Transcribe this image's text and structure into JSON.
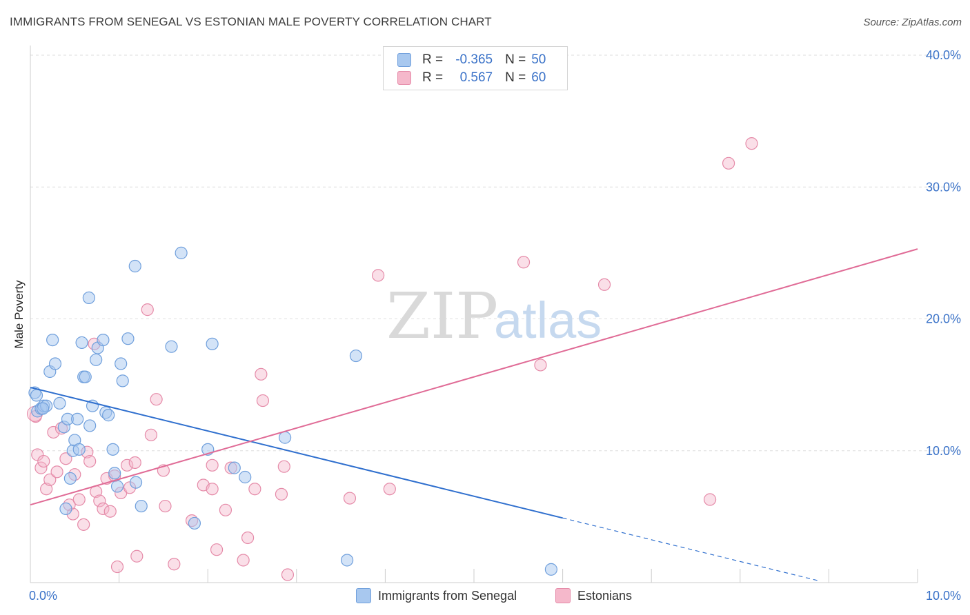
{
  "title": "IMMIGRANTS FROM SENEGAL VS ESTONIAN MALE POVERTY CORRELATION CHART",
  "source": "Source: ZipAtlas.com",
  "watermark": {
    "zip": "ZIP",
    "atlas": "atlas"
  },
  "legend": {
    "rows": [
      {
        "r_label": "R =",
        "r_value": "-0.365",
        "n_label": "N =",
        "n_value": "50"
      },
      {
        "r_label": "R =",
        "r_value": "0.567",
        "n_label": "N =",
        "n_value": "60"
      }
    ]
  },
  "bottom_legend": [
    "Immigrants from Senegal",
    "Estonians"
  ],
  "colors": {
    "blue_fill": "#a8c8ef",
    "blue_stroke": "#6f9fdc",
    "blue_line": "#2f6fce",
    "pink_fill": "#f5b8cb",
    "pink_stroke": "#e58aa8",
    "pink_line": "#e06b96",
    "axis_label": "#3a72c8",
    "grid": "#dddddd"
  },
  "chart_data": {
    "type": "scatter",
    "title": "IMMIGRANTS FROM SENEGAL VS ESTONIAN MALE POVERTY CORRELATION CHART",
    "xlabel": "",
    "ylabel": "Male Poverty",
    "xlim": [
      0,
      10
    ],
    "ylim": [
      0,
      40
    ],
    "x_ticks": [
      "0.0%",
      "10.0%"
    ],
    "y_ticks": [
      {
        "value": 10,
        "label": "10.0%"
      },
      {
        "value": 20,
        "label": "20.0%"
      },
      {
        "value": 30,
        "label": "30.0%"
      },
      {
        "value": 40,
        "label": "40.0%"
      }
    ],
    "grid": true,
    "legend_position": "top-center",
    "series": [
      {
        "name": "Immigrants from Senegal",
        "r": -0.365,
        "n": 50,
        "points": [
          [
            0.05,
            14.4
          ],
          [
            0.07,
            14.2
          ],
          [
            0.08,
            13.0
          ],
          [
            0.12,
            13.2
          ],
          [
            0.15,
            13.4
          ],
          [
            0.18,
            13.4
          ],
          [
            0.14,
            13.2
          ],
          [
            0.22,
            16.0
          ],
          [
            0.25,
            18.4
          ],
          [
            0.28,
            16.6
          ],
          [
            0.33,
            13.6
          ],
          [
            0.38,
            11.8
          ],
          [
            0.42,
            12.4
          ],
          [
            0.45,
            7.9
          ],
          [
            0.48,
            10.0
          ],
          [
            0.5,
            10.8
          ],
          [
            0.53,
            12.4
          ],
          [
            0.55,
            10.1
          ],
          [
            0.58,
            18.2
          ],
          [
            0.6,
            15.6
          ],
          [
            0.62,
            15.6
          ],
          [
            0.66,
            21.6
          ],
          [
            0.67,
            11.9
          ],
          [
            0.7,
            13.4
          ],
          [
            0.74,
            16.9
          ],
          [
            0.76,
            17.8
          ],
          [
            0.82,
            18.4
          ],
          [
            0.85,
            12.9
          ],
          [
            0.88,
            12.7
          ],
          [
            0.93,
            10.1
          ],
          [
            0.95,
            8.3
          ],
          [
            0.98,
            7.3
          ],
          [
            1.02,
            16.6
          ],
          [
            1.04,
            15.3
          ],
          [
            1.1,
            18.5
          ],
          [
            1.18,
            24.0
          ],
          [
            1.19,
            7.6
          ],
          [
            1.25,
            5.8
          ],
          [
            1.59,
            17.9
          ],
          [
            1.7,
            25.0
          ],
          [
            1.85,
            4.5
          ],
          [
            2.0,
            10.1
          ],
          [
            2.05,
            18.1
          ],
          [
            2.3,
            8.7
          ],
          [
            2.42,
            8.0
          ],
          [
            2.87,
            11.0
          ],
          [
            3.57,
            1.7
          ],
          [
            3.67,
            17.2
          ],
          [
            5.87,
            1.0
          ],
          [
            0.4,
            5.6
          ]
        ]
      },
      {
        "name": "Estonians",
        "r": 0.567,
        "n": 60,
        "points": [
          [
            0.06,
            12.6
          ],
          [
            0.08,
            9.7
          ],
          [
            0.12,
            8.7
          ],
          [
            0.15,
            9.2
          ],
          [
            0.18,
            7.1
          ],
          [
            0.22,
            7.8
          ],
          [
            0.26,
            11.4
          ],
          [
            0.3,
            8.4
          ],
          [
            0.35,
            11.7
          ],
          [
            0.4,
            9.4
          ],
          [
            0.44,
            5.9
          ],
          [
            0.48,
            5.2
          ],
          [
            0.5,
            8.2
          ],
          [
            0.55,
            6.3
          ],
          [
            0.6,
            4.4
          ],
          [
            0.64,
            9.9
          ],
          [
            0.67,
            9.2
          ],
          [
            0.72,
            18.1
          ],
          [
            0.74,
            6.9
          ],
          [
            0.78,
            6.2
          ],
          [
            0.82,
            5.6
          ],
          [
            0.86,
            7.9
          ],
          [
            0.9,
            5.4
          ],
          [
            0.95,
            8.1
          ],
          [
            0.98,
            1.2
          ],
          [
            1.02,
            6.8
          ],
          [
            1.09,
            8.9
          ],
          [
            1.12,
            7.2
          ],
          [
            1.18,
            9.1
          ],
          [
            1.2,
            2.0
          ],
          [
            1.32,
            20.7
          ],
          [
            1.36,
            11.2
          ],
          [
            1.42,
            13.9
          ],
          [
            1.5,
            8.5
          ],
          [
            1.52,
            5.8
          ],
          [
            1.62,
            1.4
          ],
          [
            1.82,
            4.7
          ],
          [
            1.95,
            7.4
          ],
          [
            2.05,
            7.1
          ],
          [
            2.05,
            8.9
          ],
          [
            2.1,
            2.5
          ],
          [
            2.2,
            5.5
          ],
          [
            2.26,
            8.7
          ],
          [
            2.4,
            1.7
          ],
          [
            2.45,
            3.4
          ],
          [
            2.53,
            7.1
          ],
          [
            2.6,
            15.8
          ],
          [
            2.62,
            13.8
          ],
          [
            2.83,
            6.7
          ],
          [
            2.86,
            8.8
          ],
          [
            2.9,
            0.6
          ],
          [
            3.6,
            6.4
          ],
          [
            3.92,
            23.3
          ],
          [
            4.05,
            7.1
          ],
          [
            5.56,
            24.3
          ],
          [
            5.75,
            16.5
          ],
          [
            6.47,
            22.6
          ],
          [
            7.66,
            6.3
          ],
          [
            7.87,
            31.8
          ],
          [
            8.13,
            33.3
          ]
        ]
      }
    ],
    "trendlines": [
      {
        "series": "Immigrants from Senegal",
        "solid_x": [
          0,
          6.0
        ],
        "dashed_x": [
          6.0,
          8.9
        ],
        "y_at_0": 14.8,
        "slope": -1.65
      },
      {
        "series": "Estonians",
        "solid_x": [
          0,
          10.0
        ],
        "y_at_0": 5.9,
        "slope": 1.94
      }
    ]
  }
}
